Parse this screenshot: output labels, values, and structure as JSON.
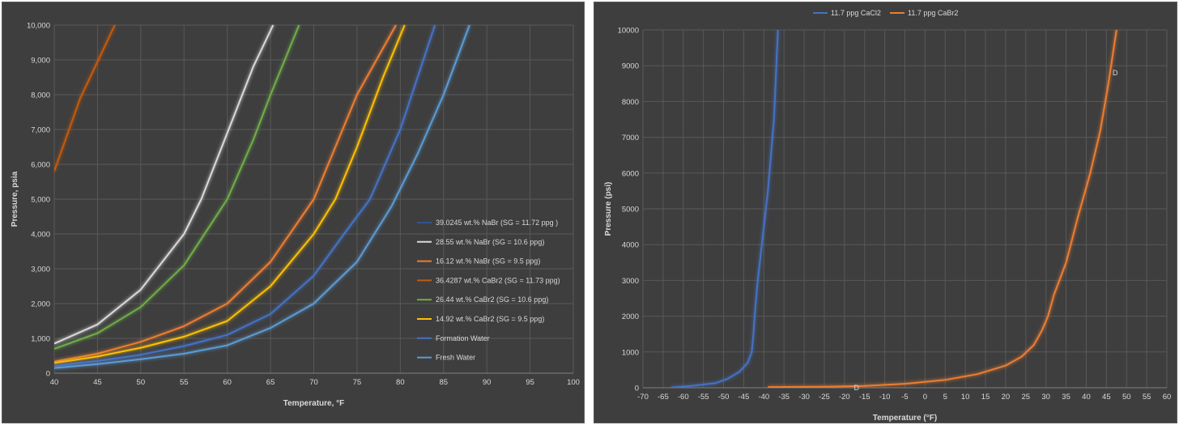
{
  "chart_data": [
    {
      "type": "line",
      "title": "",
      "xlabel": "Temperature, °F",
      "ylabel": "Pressure, psia",
      "xlim": [
        40,
        100
      ],
      "ylim": [
        0,
        10000
      ],
      "xticks": [
        "40",
        "45",
        "50",
        "55",
        "60",
        "65",
        "70",
        "75",
        "80",
        "85",
        "90",
        "95",
        "100"
      ],
      "yticks": [
        "0",
        "1,000",
        "2,000",
        "3,000",
        "4,000",
        "5,000",
        "6,000",
        "7,000",
        "8,000",
        "9,000",
        "10,000"
      ],
      "grid": true,
      "legend_position": "right",
      "series": [
        {
          "name": "39.0245 wt.% NaBr (SG = 11.72 ppg )",
          "color": "#2f5597",
          "x": [],
          "y": []
        },
        {
          "name": "28.55 wt.% NaBr (SG = 10.6 ppg)",
          "color": "#d9d9d9",
          "x": [
            40,
            45,
            50,
            55,
            57,
            60,
            63,
            65.3
          ],
          "y": [
            850,
            1400,
            2400,
            4000,
            5000,
            6900,
            8800,
            10000
          ]
        },
        {
          "name": "16.12 wt.% NaBr (SG = 9.5 ppg)",
          "color": "#ed7d31",
          "x": [
            40,
            45,
            50,
            55,
            60,
            65,
            70,
            75,
            79.5
          ],
          "y": [
            330,
            560,
            900,
            1350,
            2000,
            3200,
            5000,
            8000,
            10000
          ]
        },
        {
          "name": "36.4287 wt.% CaBr2 (SG = 11.73 ppg)",
          "color": "#c55a11",
          "x": [
            40,
            43,
            47
          ],
          "y": [
            5800,
            7900,
            10000
          ]
        },
        {
          "name": "26.44 wt.% CaBr2 (SG = 10.6 ppg)",
          "color": "#70ad47",
          "x": [
            40,
            45,
            50,
            55,
            60,
            63,
            65,
            68.3
          ],
          "y": [
            700,
            1150,
            1900,
            3100,
            5000,
            6700,
            8000,
            10000
          ]
        },
        {
          "name": "14.92 wt.% CaBr2 (SG = 9.5 ppg)",
          "color": "#ffc000",
          "x": [
            40,
            45,
            50,
            55,
            60,
            65,
            70,
            72.5,
            75,
            78,
            80.5
          ],
          "y": [
            290,
            480,
            730,
            1050,
            1500,
            2500,
            4000,
            5000,
            6500,
            8500,
            10000
          ]
        },
        {
          "name": "Formation Water",
          "color": "#4472c4",
          "x": [
            40,
            45,
            50,
            55,
            60,
            65,
            70,
            73.5,
            76.5,
            80,
            84
          ],
          "y": [
            210,
            350,
            530,
            780,
            1100,
            1700,
            2800,
            4000,
            5000,
            7000,
            10000
          ]
        },
        {
          "name": "Fresh Water",
          "color": "#5b9bd5",
          "x": [
            40,
            45,
            50,
            55,
            60,
            65,
            70,
            75,
            79,
            82,
            85,
            88
          ],
          "y": [
            150,
            260,
            400,
            560,
            800,
            1300,
            2000,
            3200,
            4800,
            6300,
            8000,
            10000
          ]
        }
      ]
    },
    {
      "type": "line",
      "title": "",
      "xlabel": "Temperature (°F)",
      "ylabel": "Pressure (psi)",
      "xlim": [
        -70,
        60
      ],
      "ylim": [
        0,
        10000
      ],
      "xticks": [
        "-70",
        "-65",
        "-60",
        "-55",
        "-50",
        "-45",
        "-40",
        "-35",
        "-30",
        "-25",
        "-20",
        "-15",
        "-10",
        "-5",
        "0",
        "5",
        "10",
        "15",
        "20",
        "25",
        "30",
        "35",
        "40",
        "45",
        "50",
        "55",
        "60"
      ],
      "yticks": [
        "0",
        "1000",
        "2000",
        "3000",
        "4000",
        "5000",
        "6000",
        "7000",
        "8000",
        "9000",
        "10000"
      ],
      "grid": true,
      "legend_position": "top",
      "annotations": [
        "D",
        "D"
      ],
      "series": [
        {
          "name": "11.7 ppg CaCl2",
          "color": "#4472c4",
          "x": [
            -63,
            -58,
            -52,
            -49,
            -46,
            -44,
            -43,
            -42.6,
            -42.3,
            -41.5,
            -40.5,
            -39,
            -37.5,
            -36.5
          ],
          "y": [
            10,
            50,
            130,
            250,
            450,
            700,
            1000,
            1500,
            2000,
            3000,
            4000,
            5500,
            7500,
            10000
          ]
        },
        {
          "name": "11.7 ppg CaBr2",
          "color": "#ed7d31",
          "x": [
            -39,
            -25,
            -15,
            -5,
            5,
            13,
            20,
            24,
            27,
            29,
            30.5,
            32,
            35,
            38,
            41,
            43.5,
            45.5,
            47.5
          ],
          "y": [
            20,
            30,
            50,
            110,
            220,
            380,
            620,
            870,
            1200,
            1600,
            2000,
            2600,
            3500,
            4800,
            6000,
            7200,
            8500,
            10000
          ]
        }
      ]
    }
  ]
}
